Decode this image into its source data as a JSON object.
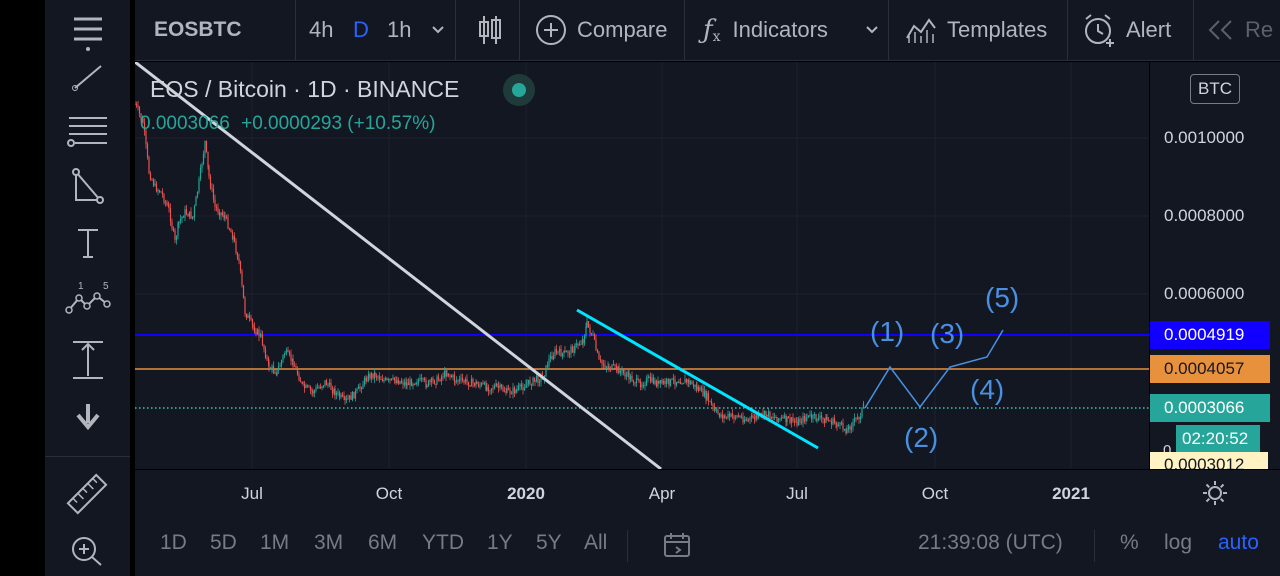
{
  "toolbar": {
    "symbol": "EOSBTC",
    "intervals": [
      "4h",
      "D",
      "1h"
    ],
    "compare_label": "Compare",
    "indicators_label": "Indicators",
    "templates_label": "Templates",
    "alert_label": "Alert",
    "replay_label": "Re"
  },
  "legend": {
    "title": "EOS / Bitcoin · 1D · BINANCE",
    "last": "0.0003066",
    "change": "+0.0000293 (+10.57%)"
  },
  "price_axis": {
    "currency": "BTC",
    "ticks": [
      "0.0010000",
      "0.0008000",
      "0.0006000"
    ],
    "tags": [
      {
        "label": "0.0004919",
        "color": "#1100ff"
      },
      {
        "label": "0.0004057",
        "color": "#e8913c"
      },
      {
        "label": "0.0003066",
        "color": "#26a69a"
      },
      {
        "label": "02:20:52",
        "color": "#26a69a"
      },
      {
        "label": "0.0003012",
        "color": "#fff3c4"
      }
    ],
    "partial_zero": "0"
  },
  "time_axis": [
    "Jul",
    "Oct",
    "2020",
    "Apr",
    "Jul",
    "Oct",
    "2021"
  ],
  "waves": [
    "(1)",
    "(2)",
    "(3)",
    "(4)",
    "(5)"
  ],
  "bottom": {
    "ranges": [
      "1D",
      "5D",
      "1M",
      "3M",
      "6M",
      "YTD",
      "1Y",
      "5Y",
      "All"
    ],
    "clock": "21:39:08 (UTC)",
    "percent": "%",
    "log": "log",
    "auto": "auto"
  },
  "colors": {
    "bg": "#131722",
    "up": "#26a69a",
    "down": "#ef5350",
    "hline_blue": "#1100ff",
    "hline_orange": "#e8913c",
    "trend_white": "#d1d4dc",
    "trend_cyan": "#00e5ff",
    "wave": "#4a90e2",
    "accent": "#2962ff"
  }
}
